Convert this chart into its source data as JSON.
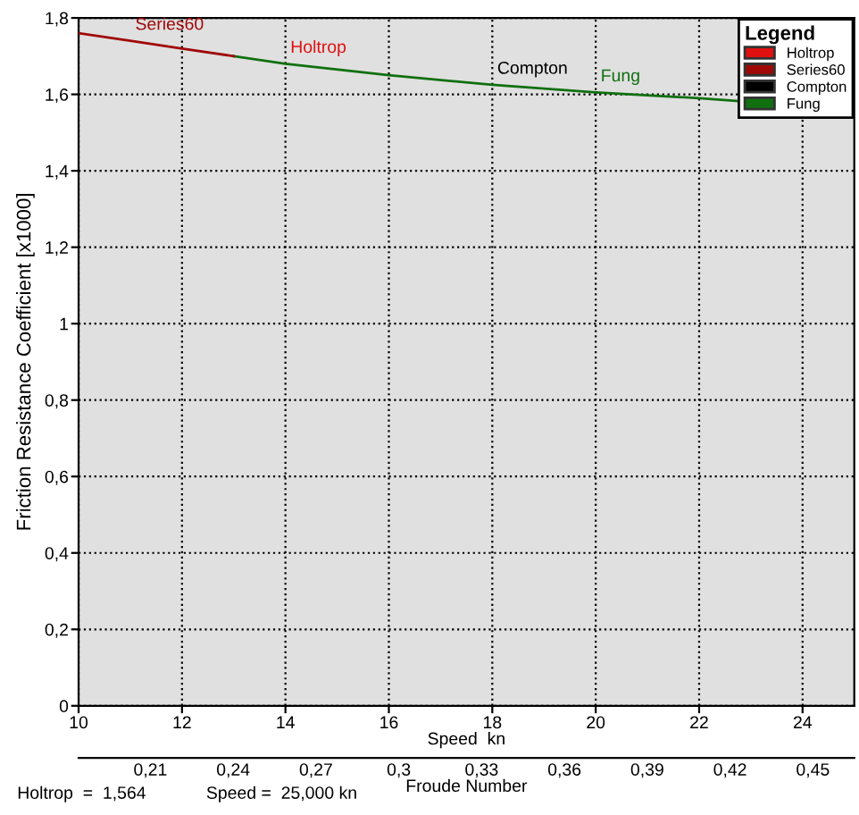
{
  "chart_data": {
    "type": "line",
    "xlabel": "Speed  kn",
    "ylabel": "Friction Resistance Coefficient [x1000]",
    "legend_title": "Legend",
    "legend": "top right",
    "grid": true,
    "xlim": [
      10,
      25
    ],
    "xticks": [
      10,
      12,
      14,
      16,
      18,
      20,
      22,
      24
    ],
    "ylim": [
      0,
      1.8
    ],
    "yticks": [
      0,
      {
        "value": 0.2,
        "label": "0,2"
      },
      {
        "value": 0.4,
        "label": "0,4"
      },
      {
        "value": 0.6,
        "label": "0,6"
      },
      {
        "value": 0.8,
        "label": "0,8"
      },
      1,
      {
        "value": 1.2,
        "label": "1,2"
      },
      {
        "value": 1.4,
        "label": "1,4"
      },
      {
        "value": 1.6,
        "label": "1,6"
      },
      {
        "value": 1.8,
        "label": "1,8"
      }
    ],
    "x2label": "Froude Number",
    "x2lim": [
      0.184,
      0.465
    ],
    "x2ticks": [
      {
        "value": 0.21,
        "label": "0,21"
      },
      {
        "value": 0.24,
        "label": "0,24"
      },
      {
        "value": 0.27,
        "label": "0,27"
      },
      {
        "value": 0.3,
        "label": "0,3"
      },
      {
        "value": 0.33,
        "label": "0,33"
      },
      {
        "value": 0.36,
        "label": "0,36"
      },
      {
        "value": 0.39,
        "label": "0,39"
      },
      {
        "value": 0.42,
        "label": "0,42"
      },
      {
        "value": 0.45,
        "label": "0,45"
      }
    ],
    "series": [
      {
        "name": "Holtrop",
        "color": "#e01010"
      },
      {
        "name": "Series60",
        "color": "#a00808",
        "x": [
          10,
          11,
          12,
          13
        ],
        "values": [
          1.76,
          1.74,
          1.72,
          1.7
        ]
      },
      {
        "name": "Compton",
        "color": "#000000"
      },
      {
        "name": "Fung",
        "color": "#107010",
        "x": [
          13,
          14,
          16,
          18,
          20,
          22,
          22.8
        ],
        "values": [
          1.7,
          1.68,
          1.65,
          1.625,
          1.605,
          1.59,
          1.582
        ]
      }
    ],
    "annotations": [
      {
        "text": "Holtrop",
        "x": 14,
        "y": 1.68
      },
      {
        "text": "Series60",
        "x": 11,
        "y": 1.74
      },
      {
        "text": "Compton",
        "x": 18,
        "y": 1.625
      },
      {
        "text": "Fung",
        "x": 20,
        "y": 1.605
      },
      "Holtrop  =  1,564",
      "Speed =  25,000 kn"
    ]
  }
}
